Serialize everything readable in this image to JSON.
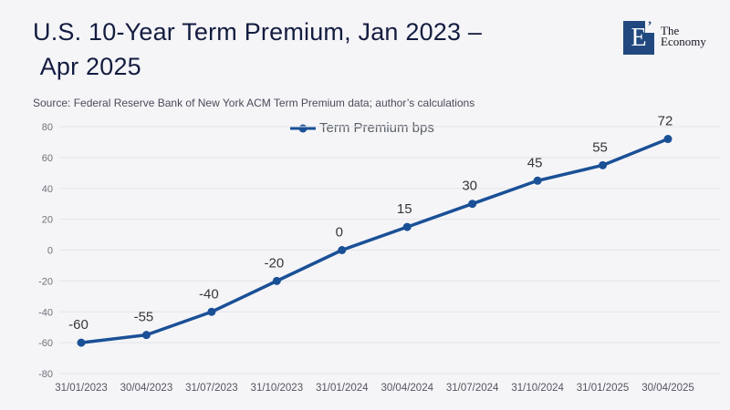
{
  "page": {
    "background": "#f5f5f8"
  },
  "header": {
    "title": "U.S. 10-Year Term Premium, Jan 2023 –\n Apr 2025",
    "source": "Source: Federal Reserve Bank of New York ACM Term Premium data; author’s calculations"
  },
  "logo": {
    "monogram": "E",
    "mark": "’",
    "name_line1": "The",
    "name_line2": "Economy",
    "box_color": "#21497f"
  },
  "chart_data": {
    "type": "line",
    "title": "U.S. 10-Year Term Premium, Jan 2023 – Apr 2025",
    "categories": [
      "31/01/2023",
      "30/04/2023",
      "31/07/2023",
      "31/10/2023",
      "31/01/2024",
      "30/04/2024",
      "31/07/2024",
      "31/10/2024",
      "31/01/2025",
      "30/04/2025"
    ],
    "series": [
      {
        "name": "Term Premium bps",
        "values": [
          -60,
          -55,
          -40,
          -20,
          0,
          15,
          30,
          45,
          55,
          72
        ],
        "color": "#1a5096"
      }
    ],
    "ylim": [
      -80,
      80
    ],
    "ytick_step": 20,
    "grid": true,
    "legend_position": "top",
    "data_labels": true
  },
  "colors": {
    "gridline": "#e3e4ea",
    "y_tick": "#70707a",
    "x_tick": "#55555f",
    "data_label": "#35353b",
    "legend_text": "#5a6066"
  }
}
